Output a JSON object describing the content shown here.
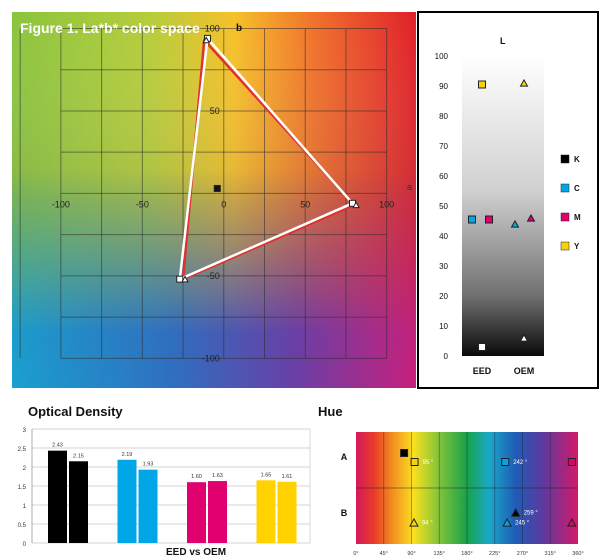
{
  "figure_title": "Figure 1. La*b* color space",
  "chart_data": [
    {
      "type": "scatter",
      "name": "lab",
      "title": "Figure 1. La*b* color space",
      "xlabel": "a",
      "ylabel": "b",
      "xlim": [
        -130,
        118
      ],
      "ylim": [
        -118,
        110
      ],
      "x_ticks": [
        -100,
        -50,
        0,
        50,
        100
      ],
      "y_ticks": [
        -100,
        -50,
        0,
        50,
        100
      ],
      "grid": true,
      "series": [
        {
          "name": "EED",
          "color": "#ffffff",
          "points": [
            [
              -10,
              94
            ],
            [
              -27,
              -52
            ],
            [
              79,
              -6
            ],
            [
              -4,
              3
            ]
          ]
        },
        {
          "name": "OEM",
          "color": "#e03030",
          "points": [
            [
              -12,
              93
            ],
            [
              -25,
              -52
            ],
            [
              80,
              -7
            ],
            [
              -3,
              4
            ]
          ]
        }
      ]
    },
    {
      "type": "scatter",
      "name": "lightness",
      "ylabel": "L",
      "ylim": [
        0,
        100
      ],
      "y_ticks": [
        0,
        10,
        20,
        30,
        40,
        50,
        60,
        70,
        80,
        90,
        100
      ],
      "categories": [
        "EED",
        "OEM"
      ],
      "legend": [
        {
          "label": "K",
          "color": "#000000"
        },
        {
          "label": "C",
          "color": "#00a6e6"
        },
        {
          "label": "M",
          "color": "#e0006f"
        },
        {
          "label": "Y",
          "color": "#f5d20a"
        }
      ],
      "points": [
        {
          "ink": "Y",
          "eed": 90.5,
          "oem": 91
        },
        {
          "ink": "C",
          "eed": 45.5,
          "oem": 44
        },
        {
          "ink": "M",
          "eed": 45.5,
          "oem": 46
        },
        {
          "ink": "K",
          "eed": 3,
          "oem": 6
        }
      ]
    },
    {
      "type": "bar",
      "name": "optical_density",
      "title": "Optical Density",
      "xlabel": "EED vs OEM",
      "ylim": [
        0,
        3
      ],
      "y_ticks": [
        "0",
        "0.5",
        "1",
        "1.5",
        "2",
        "2.5",
        "3"
      ],
      "groups": [
        {
          "color": "#000000",
          "values": [
            2.43,
            2.15
          ],
          "labels": [
            "2.43",
            "2.15"
          ]
        },
        {
          "color": "#00a6e6",
          "values": [
            2.19,
            1.93
          ],
          "labels": [
            "2.19",
            "1.93"
          ]
        },
        {
          "color": "#e0006f",
          "values": [
            1.6,
            1.63
          ],
          "labels": [
            "1.60",
            "1.63"
          ]
        },
        {
          "color": "#ffd200",
          "values": [
            1.65,
            1.61
          ],
          "labels": [
            "1.65",
            "1.61"
          ]
        }
      ]
    },
    {
      "type": "scatter",
      "name": "hue",
      "title": "Hue",
      "x_ticks": [
        "0°",
        "45°",
        "90°",
        "135°",
        "180°",
        "225°",
        "270°",
        "315°",
        "360°"
      ],
      "xlim": [
        0,
        360
      ],
      "rows": [
        "A",
        "B"
      ],
      "points": [
        {
          "row": "A",
          "shape": "square",
          "color": "#000000",
          "hue": 78,
          "offset": -1,
          "label": ""
        },
        {
          "row": "A",
          "shape": "square",
          "color": "#f5d20a",
          "hue": 95,
          "offset": 0,
          "label": "95 °"
        },
        {
          "row": "A",
          "shape": "square",
          "color": "#00a6e6",
          "hue": 242,
          "offset": 0,
          "label": "242 °"
        },
        {
          "row": "A",
          "shape": "square",
          "color": "#e0006f",
          "hue": 350,
          "offset": 0,
          "label": ""
        },
        {
          "row": "B",
          "shape": "triangle",
          "color": "#f5d20a",
          "hue": 94,
          "offset": 0.5,
          "label": "94 °"
        },
        {
          "row": "B",
          "shape": "triangle",
          "color": "#000000",
          "hue": 259,
          "offset": -0.6,
          "label": "259 °"
        },
        {
          "row": "B",
          "shape": "triangle",
          "color": "#00a6e6",
          "hue": 245,
          "offset": 0.5,
          "label": "245 °"
        },
        {
          "row": "B",
          "shape": "triangle",
          "color": "#e0006f",
          "hue": 350,
          "offset": 0.5,
          "label": ""
        }
      ]
    }
  ]
}
